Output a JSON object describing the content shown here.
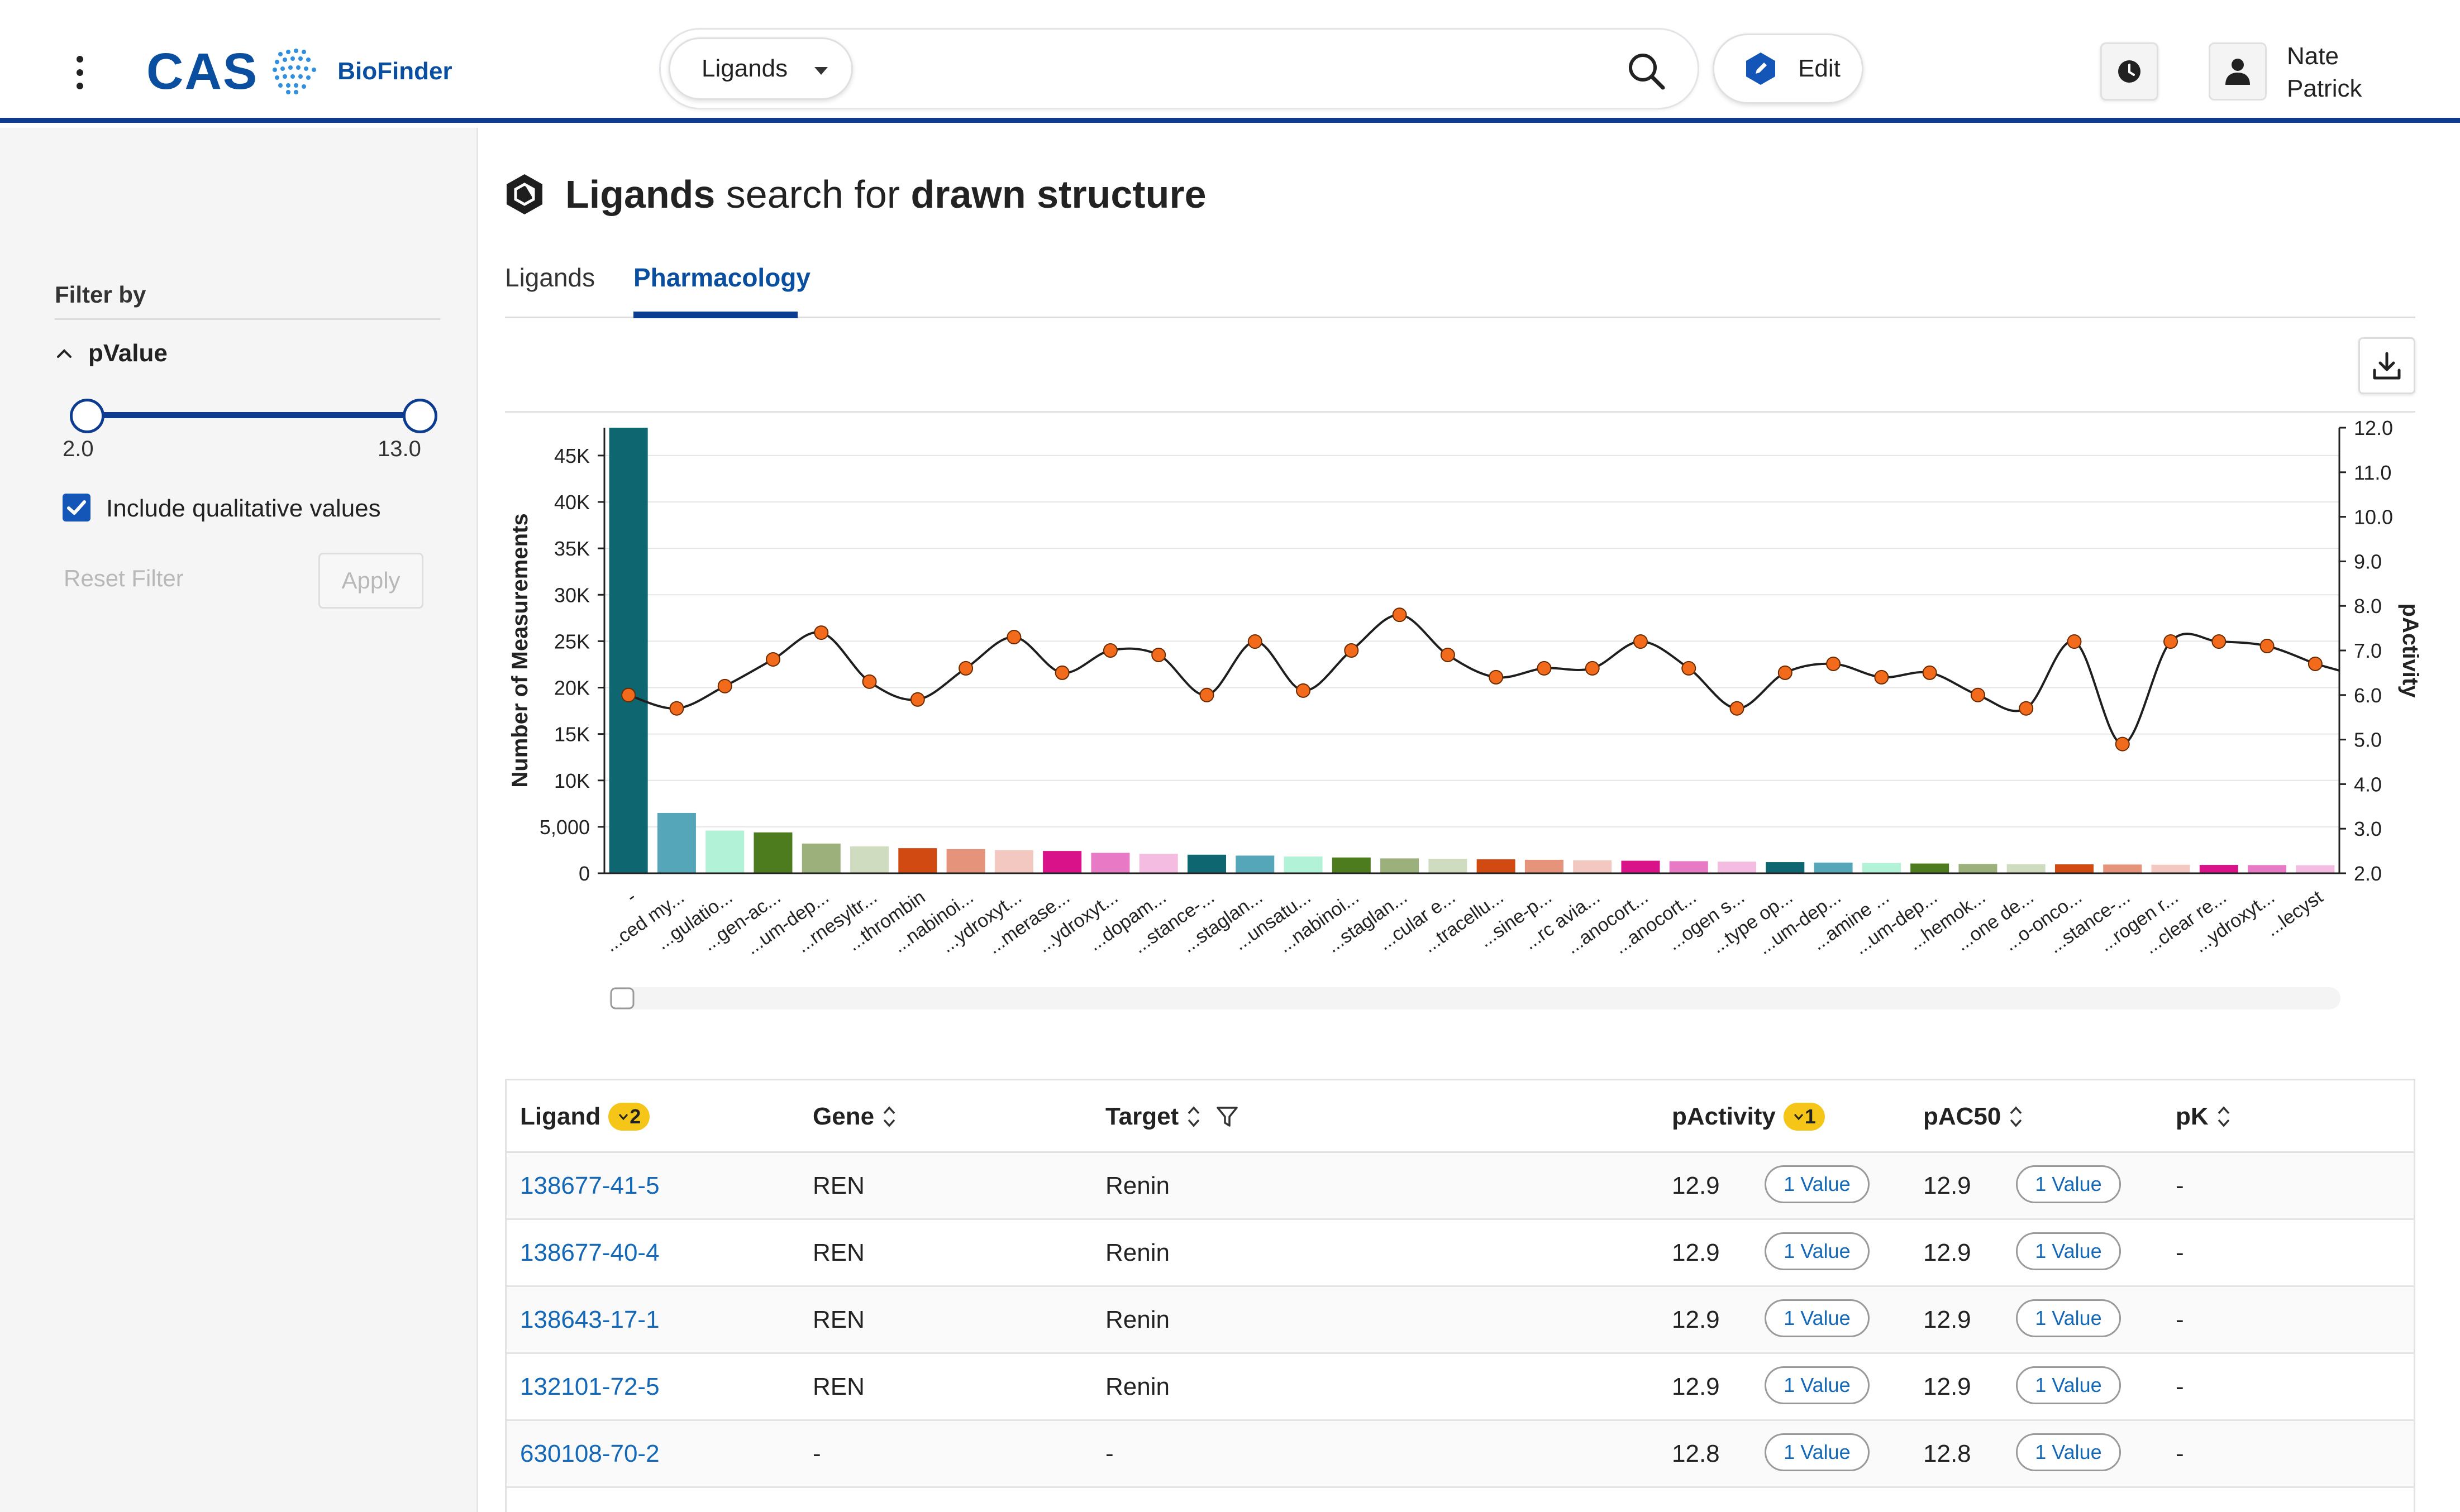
{
  "header": {
    "logo_text": "CAS",
    "product_name": "BioFinder",
    "search": {
      "scope": "Ligands",
      "value": "",
      "placeholder": ""
    },
    "edit_label": "Edit",
    "user": {
      "first_name": "Nate",
      "last_name": "Patrick"
    }
  },
  "sidebar": {
    "filter_by_label": "Filter by",
    "pvalue": {
      "label": "pValue",
      "min_label": "2.0",
      "max_label": "13.0",
      "range": [
        2.0,
        13.0
      ],
      "selected": [
        2.0,
        13.0
      ]
    },
    "include_qualitative_label": "Include qualitative values",
    "include_qualitative_checked": true,
    "reset_label": "Reset Filter",
    "apply_label": "Apply"
  },
  "page": {
    "title_bold_1": "Ligands",
    "title_mid": " search for ",
    "title_bold_2": "drawn structure",
    "tabs": [
      {
        "label": "Ligands",
        "active": false
      },
      {
        "label": "Pharmacology",
        "active": true
      }
    ]
  },
  "colors": {
    "brand_blue": "#0d3b8f",
    "link_blue": "#1468b8",
    "badge_yellow": "#f5c518",
    "line_point": "#f26a1b"
  },
  "chart_data": {
    "type": "bar",
    "ylabel": "Number of Measurements",
    "y2label": "pActivity",
    "ylim": [
      0,
      48000
    ],
    "y_ticks": [
      "0",
      "5,000",
      "10K",
      "15K",
      "20K",
      "25K",
      "30K",
      "35K",
      "40K",
      "45K"
    ],
    "y_tick_values": [
      0,
      5000,
      10000,
      15000,
      20000,
      25000,
      30000,
      35000,
      40000,
      45000
    ],
    "y2lim": [
      2.0,
      12.0
    ],
    "y2_ticks": [
      "2.0",
      "3.0",
      "4.0",
      "5.0",
      "6.0",
      "7.0",
      "8.0",
      "9.0",
      "10.0",
      "11.0",
      "12.0"
    ],
    "grid": true,
    "categories": [
      "-",
      "...ced my...",
      "...gulatio...",
      "...gen-ac...",
      "...um-dep...",
      "...rnesyltr...",
      "...thrombin",
      "...nabinoi...",
      "...ydroxyt...",
      "...merase...",
      "...ydroxyt...",
      "...dopam...",
      "...stance-...",
      "...staglan...",
      "...unsatu...",
      "...nabinoi...",
      "...staglan...",
      "...cular e...",
      "...tracellu...",
      "...sine-p...",
      "...rc avia...",
      "...anocort...",
      "...anocort...",
      "...ogen s...",
      "...type op...",
      "...um-dep...",
      "...amine ...",
      "...um-dep...",
      "...hemok...",
      "...one de...",
      "...o-onco...",
      "...stance-...",
      "...rogen r...",
      "...clear re...",
      "...ydroxyt...",
      "...lecyst"
    ],
    "bar_values": [
      48000,
      6500,
      4600,
      4400,
      3200,
      2900,
      2700,
      2600,
      2500,
      2400,
      2200,
      2100,
      2000,
      1900,
      1800,
      1700,
      1600,
      1550,
      1500,
      1450,
      1400,
      1350,
      1300,
      1250,
      1200,
      1150,
      1100,
      1050,
      1000,
      980,
      960,
      940,
      920,
      900,
      880,
      860
    ],
    "bar_colors": [
      "#0e6670",
      "#55a6b8",
      "#b2f2d6",
      "#4d7c1f",
      "#9bb07a",
      "#cfdcc0",
      "#d14a12",
      "#e5937a",
      "#f3c8c0",
      "#d9128a",
      "#e879c4",
      "#f4bce0",
      "#0e6670",
      "#55a6b8",
      "#b2f2d6",
      "#4d7c1f",
      "#9bb07a",
      "#cfdcc0",
      "#d14a12",
      "#e5937a",
      "#f3c8c0",
      "#d9128a",
      "#e879c4",
      "#f4bce0",
      "#0e6670",
      "#55a6b8",
      "#b2f2d6",
      "#4d7c1f",
      "#9bb07a",
      "#cfdcc0",
      "#d14a12",
      "#e5937a",
      "#f3c8c0",
      "#d9128a",
      "#e879c4",
      "#f4bce0"
    ],
    "line_values": [
      6.0,
      5.7,
      6.2,
      6.8,
      7.4,
      6.3,
      5.9,
      6.6,
      7.3,
      6.5,
      7.0,
      6.9,
      6.0,
      7.2,
      6.1,
      7.0,
      7.8,
      6.9,
      6.4,
      6.6,
      6.6,
      7.2,
      6.6,
      5.7,
      6.5,
      6.7,
      6.4,
      6.5,
      6.0,
      5.7,
      7.2,
      4.9,
      7.2,
      7.2,
      7.1,
      6.7
    ]
  },
  "table": {
    "columns": {
      "ligand": "Ligand",
      "ligand_badge": "2",
      "gene": "Gene",
      "target": "Target",
      "pactivity": "pActivity",
      "pactivity_badge": "1",
      "pac50": "pAC50",
      "pk": "pK"
    },
    "rows": [
      {
        "ligand": "138677-41-5",
        "gene": "REN",
        "target": "Renin",
        "pactivity": "12.9",
        "pactivity_pill": "1 Value",
        "pac50": "12.9",
        "pac50_pill": "1 Value",
        "pk": "-"
      },
      {
        "ligand": "138677-40-4",
        "gene": "REN",
        "target": "Renin",
        "pactivity": "12.9",
        "pactivity_pill": "1 Value",
        "pac50": "12.9",
        "pac50_pill": "1 Value",
        "pk": "-"
      },
      {
        "ligand": "138643-17-1",
        "gene": "REN",
        "target": "Renin",
        "pactivity": "12.9",
        "pactivity_pill": "1 Value",
        "pac50": "12.9",
        "pac50_pill": "1 Value",
        "pk": "-"
      },
      {
        "ligand": "132101-72-5",
        "gene": "REN",
        "target": "Renin",
        "pactivity": "12.9",
        "pactivity_pill": "1 Value",
        "pac50": "12.9",
        "pac50_pill": "1 Value",
        "pk": "-"
      },
      {
        "ligand": "630108-70-2",
        "gene": "-",
        "target": "-",
        "pactivity": "12.8",
        "pactivity_pill": "1 Value",
        "pac50": "12.8",
        "pac50_pill": "1 Value",
        "pk": "-"
      }
    ]
  }
}
